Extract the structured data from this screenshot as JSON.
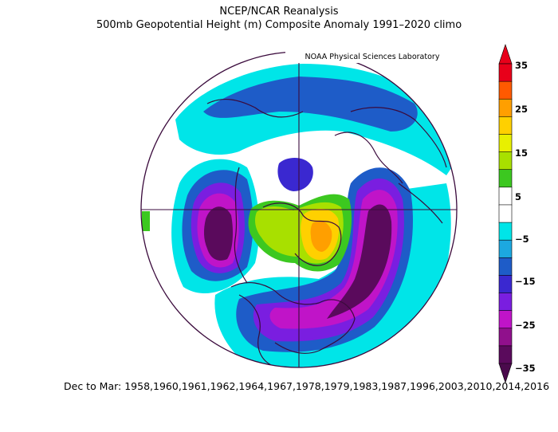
{
  "title_line1": "NCEP/NCAR Reanalysis",
  "title_line2": "500mb Geopotential Height (m) Composite Anomaly 1991–2020 climo",
  "credit": "NOAA Physical Sciences Laboratory",
  "footer": "Dec to Mar: 1958,1960,1961,1962,1964,1967,1978,1979,1983,1987,1996,2003,2010,2014,2016",
  "colorbar": {
    "labels": [
      "35",
      "25",
      "15",
      "5",
      "−5",
      "−15",
      "−25",
      "−35"
    ],
    "colors": [
      "#e8001a",
      "#ff5a00",
      "#ff9f00",
      "#ffd000",
      "#e8f000",
      "#a8e000",
      "#3cc820",
      "#ffffff",
      "#ffffff",
      "#00e5e8",
      "#1ca8e0",
      "#1e5cc8",
      "#3a28d0",
      "#7a1ee0",
      "#c014c8",
      "#90108c",
      "#5a0a5c"
    ],
    "top_arrow_color": "#e8001a",
    "bottom_arrow_color": "#4a0a4c"
  },
  "map": {
    "projection": "north-polar-stereographic",
    "anomalies": [
      {
        "region": "eastern-pacific-trough",
        "value": -35
      },
      {
        "region": "north-atlantic-trough",
        "value": -35
      },
      {
        "region": "southeast-us-trough",
        "value": -30
      },
      {
        "region": "greenland-ridge",
        "value": 20
      },
      {
        "region": "siberian-arctic-ridge",
        "value": 12
      },
      {
        "region": "eurasia-low",
        "value": -15
      }
    ]
  }
}
